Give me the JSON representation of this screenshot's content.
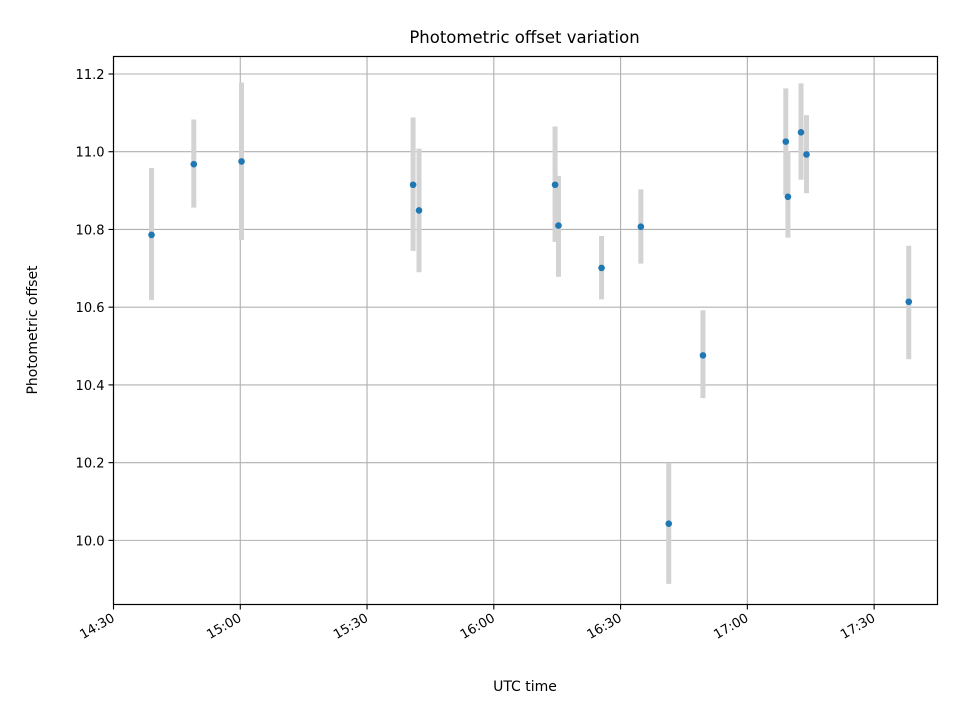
{
  "chart_data": {
    "type": "scatter",
    "title": "Photometric offset variation",
    "xlabel": "UTC time",
    "ylabel": "Photometric offset",
    "grid": true,
    "xlim": [
      "14:30",
      "17:45"
    ],
    "ylim": [
      9.835,
      11.245
    ],
    "x_ticks": [
      "14:30",
      "15:00",
      "15:30",
      "16:00",
      "16:30",
      "17:00",
      "17:30"
    ],
    "y_ticks": [
      "10.0",
      "10.2",
      "10.4",
      "10.6",
      "10.8",
      "11.0",
      "11.2"
    ],
    "colors": {
      "point": "#1f77b4",
      "errorbar": "#d3d3d3",
      "grid": "#b0b0b0"
    },
    "series": [
      {
        "points": [
          {
            "x": "14:39:00",
            "y": 10.786,
            "y_low": 10.618,
            "y_high": 10.958
          },
          {
            "x": "14:49:00",
            "y": 10.968,
            "y_low": 10.856,
            "y_high": 11.083
          },
          {
            "x": "15:00:18",
            "y": 10.975,
            "y_low": 10.773,
            "y_high": 11.178
          },
          {
            "x": "15:40:54",
            "y": 10.915,
            "y_low": 10.745,
            "y_high": 11.088
          },
          {
            "x": "15:42:18",
            "y": 10.849,
            "y_low": 10.69,
            "y_high": 11.008
          },
          {
            "x": "16:14:30",
            "y": 10.915,
            "y_low": 10.768,
            "y_high": 11.065
          },
          {
            "x": "16:15:18",
            "y": 10.81,
            "y_low": 10.678,
            "y_high": 10.938
          },
          {
            "x": "16:25:30",
            "y": 10.701,
            "y_low": 10.62,
            "y_high": 10.783
          },
          {
            "x": "16:34:48",
            "y": 10.807,
            "y_low": 10.712,
            "y_high": 10.903
          },
          {
            "x": "16:41:24",
            "y": 10.043,
            "y_low": 9.888,
            "y_high": 10.198
          },
          {
            "x": "16:49:30",
            "y": 10.476,
            "y_low": 10.366,
            "y_high": 10.592
          },
          {
            "x": "17:09:06",
            "y": 11.026,
            "y_low": 10.888,
            "y_high": 11.163
          },
          {
            "x": "17:09:36",
            "y": 10.884,
            "y_low": 10.779,
            "y_high": 11.001
          },
          {
            "x": "17:12:42",
            "y": 11.05,
            "y_low": 10.928,
            "y_high": 11.176
          },
          {
            "x": "17:14:00",
            "y": 10.993,
            "y_low": 10.893,
            "y_high": 11.094
          },
          {
            "x": "17:38:12",
            "y": 10.614,
            "y_low": 10.466,
            "y_high": 10.758
          }
        ]
      }
    ]
  }
}
